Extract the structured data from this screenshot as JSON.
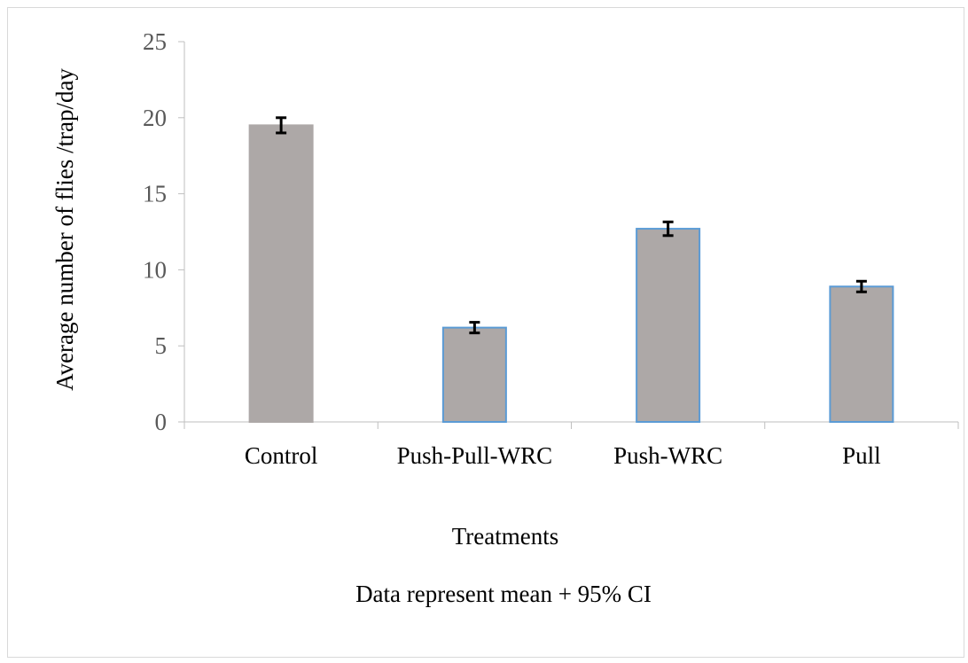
{
  "chart_data": {
    "type": "bar",
    "title": "",
    "xlabel": "Treatments",
    "ylabel": "Average number of flies /trap/day",
    "note": "Data represent mean + 95% CI",
    "categories": [
      "Control",
      "Push-Pull-WRC",
      "Push-WRC",
      "Pull"
    ],
    "values": [
      19.5,
      6.2,
      12.7,
      8.9
    ],
    "error": [
      0.5,
      0.35,
      0.45,
      0.35
    ],
    "ylim": [
      0,
      25
    ],
    "yticks": [
      "0",
      "5",
      "10",
      "15",
      "20",
      "25"
    ],
    "ytick_values": [
      0,
      5,
      10,
      15,
      20,
      25
    ],
    "grid": false,
    "legend": "none",
    "colors": {
      "bar_fill": "#ada8a7",
      "bar_border_first": "#ada8a7",
      "bar_border": "#5b9bd5",
      "error_bar": "#000000",
      "axis": "#bfbfbf"
    }
  }
}
